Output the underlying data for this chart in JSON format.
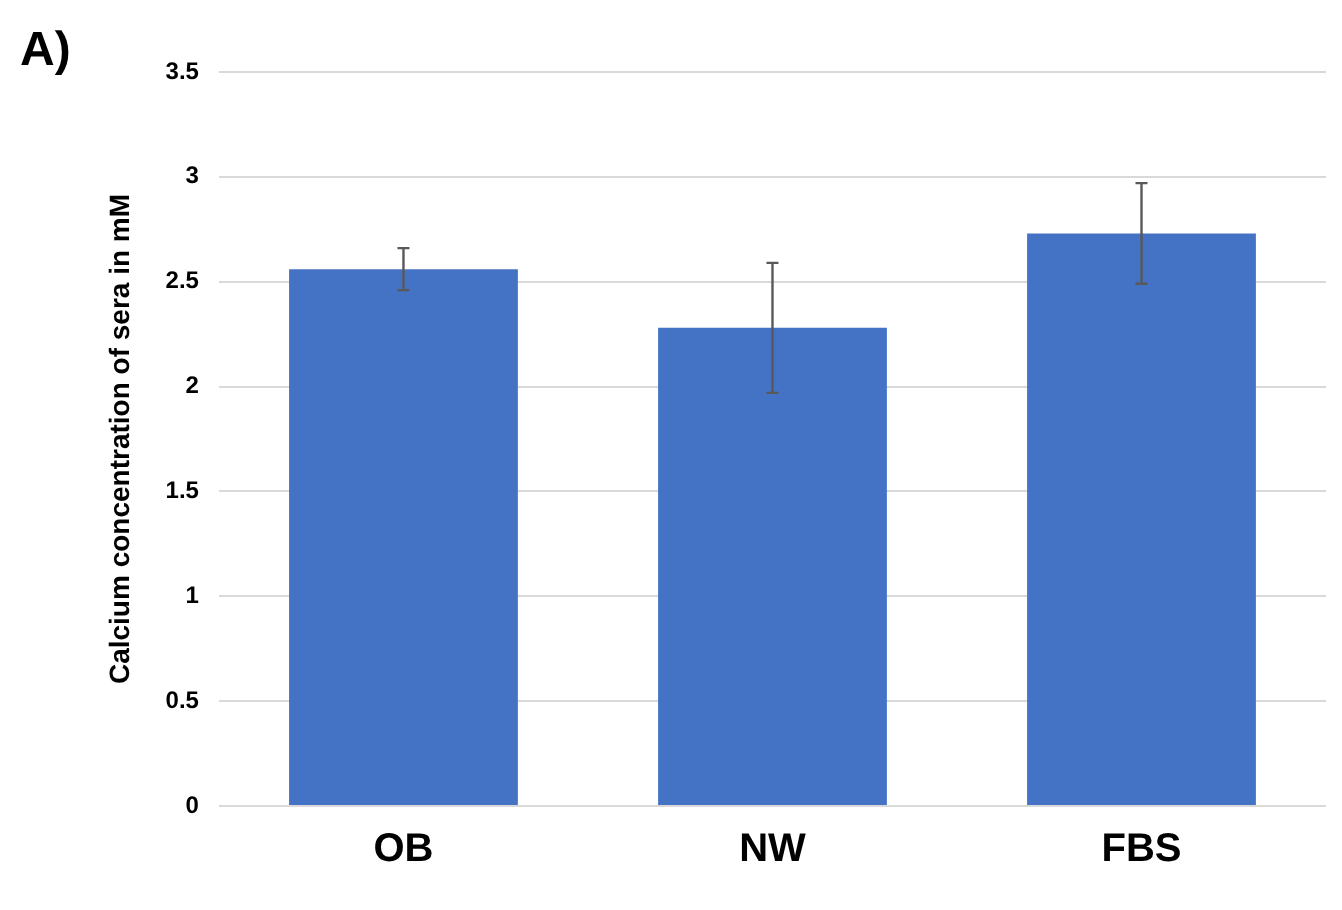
{
  "chart_data": {
    "type": "bar",
    "ylabel": "Calcium concentration of sera in mM",
    "annotations": [
      "A)"
    ],
    "categories": [
      "OB",
      "NW",
      "FBS"
    ],
    "values": [
      2.56,
      2.28,
      2.73
    ],
    "errors": [
      0.1,
      0.31,
      0.24
    ],
    "color": "#4472c4",
    "ylim": [
      0,
      3.5
    ],
    "yticks": [
      0,
      0.5,
      1,
      1.5,
      2,
      2.5,
      3,
      3.5
    ],
    "grid": "y"
  }
}
